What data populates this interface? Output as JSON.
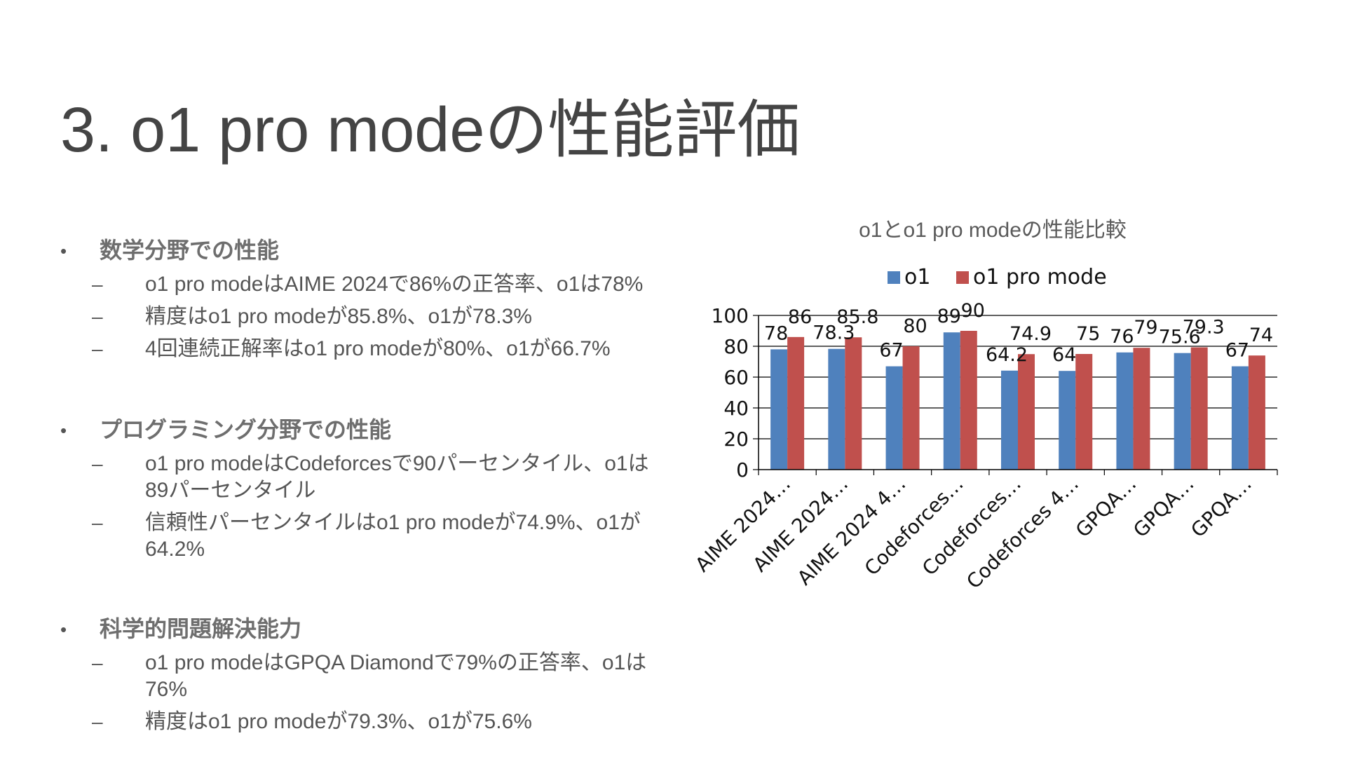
{
  "slide": {
    "title": "3. o1 pro modeの性能評価"
  },
  "sections": [
    {
      "bullet": "•",
      "heading": "数学分野での性能",
      "items": [
        "o1 pro modeはAIME 2024で86%の正答率、o1は78%",
        "精度はo1 pro modeが85.8%、o1が78.3%",
        "4回連続正解率はo1 pro modeが80%、o1が66.7%"
      ]
    },
    {
      "bullet": "•",
      "heading": "プログラミング分野での性能",
      "items": [
        "o1 pro modeはCodeforcesで90パーセンタイル、o1は89パーセンタイル",
        "信頼性パーセンタイルはo1 pro modeが74.9%、o1が64.2%"
      ]
    },
    {
      "bullet": "•",
      "heading": "科学的問題解決能力",
      "items": [
        "o1 pro modeはGPQA Diamondで79%の正答率、o1は76%",
        "精度はo1 pro modeが79.3%、o1が75.6%"
      ]
    }
  ],
  "dash": "–",
  "chart_data": {
    "type": "bar",
    "title": "o1とo1 pro modeの性能比較",
    "categories": [
      "AIME 2024…",
      "AIME 2024…",
      "AIME 2024 4…",
      "Codeforces…",
      "Codeforces…",
      "Codeforces 4…",
      "GPQA…",
      "GPQA…",
      "GPQA…"
    ],
    "series": [
      {
        "name": "o1",
        "color": "#4f81bd",
        "values": [
          78,
          78.3,
          67,
          89,
          64.2,
          64,
          76,
          75.6,
          67
        ]
      },
      {
        "name": "o1 pro mode",
        "color": "#c0504d",
        "values": [
          86,
          85.8,
          80,
          90,
          74.9,
          75,
          79,
          79.3,
          74
        ]
      }
    ],
    "ylim": [
      0,
      100
    ],
    "yticks": [
      0,
      20,
      40,
      60,
      80,
      100
    ],
    "grid": true,
    "legend_position": "top"
  }
}
